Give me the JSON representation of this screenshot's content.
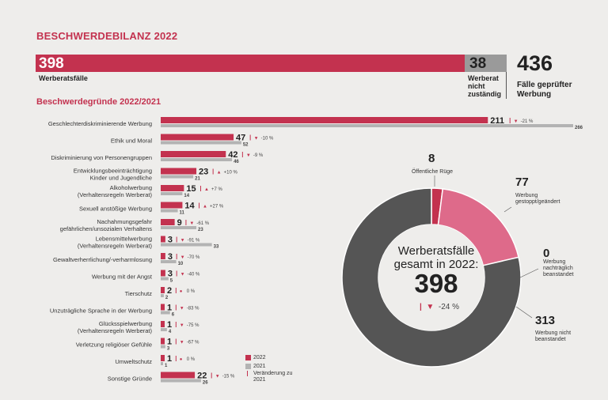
{
  "title": "BESCHWERDEBILANZ 2022",
  "subtitle": "Beschwerdegründe 2022/2021",
  "summary": {
    "werberat_value": "398",
    "werberat_label": "Werberatsfälle",
    "not_responsible_value": "38",
    "not_responsible_label": "Werberat nicht zuständig",
    "total_value": "436",
    "total_label": "Fälle geprüfter Werbung",
    "colors": {
      "red": "#c3324f",
      "gray": "#9a9a9a"
    }
  },
  "chart_data": [
    {
      "type": "bar",
      "title": "Beschwerdegründe 2022/2021",
      "xlim": [
        0,
        266
      ],
      "series_names": [
        "2022",
        "2021"
      ],
      "categories": [
        "Geschlechterdiskriminierende Werbung",
        "Ethik und Moral",
        "Diskriminierung von Personengruppen",
        "Entwicklungsbeeinträchtigung Kinder und Jugendliche",
        "Alkoholwerbung (Verhaltensregeln Werberat)",
        "Sexuell anstößige Werbung",
        "Nachahmungsgefahr gefährlichen/unsozialen Verhaltens",
        "Lebensmittelwerbung (Verhaltensregeln Werberat)",
        "Gewaltverherrlichung/-verharmlosung",
        "Werbung mit der Angst",
        "Tierschutz",
        "Unzuträgliche Sprache in der Werbung",
        "Glücksspielwerbung (Verhaltensregeln Werberat)",
        "Verletzung religiöser Gefühle",
        "Umweltschutz",
        "Sonstige Gründe"
      ],
      "label_lines": [
        [
          "Geschlechterdiskriminierende Werbung"
        ],
        [
          "Ethik und Moral"
        ],
        [
          "Diskriminierung von Personengruppen"
        ],
        [
          "Entwicklungsbeeinträchtigung",
          "Kinder und Jugendliche"
        ],
        [
          "Alkoholwerbung",
          "(Verhaltensregeln Werberat)"
        ],
        [
          "Sexuell anstößige Werbung"
        ],
        [
          "Nachahmungsgefahr",
          "gefährlichen/unsozialen Verhaltens"
        ],
        [
          "Lebensmittelwerbung",
          "(Verhaltensregeln Werberat)"
        ],
        [
          "Gewaltverherrlichung/-verharmlosung"
        ],
        [
          "Werbung mit der Angst"
        ],
        [
          "Tierschutz"
        ],
        [
          "Unzuträgliche Sprache in der Werbung"
        ],
        [
          "Glücksspielwerbung",
          "(Verhaltensregeln Werberat)"
        ],
        [
          "Verletzung religiöser Gefühle"
        ],
        [
          "Umweltschutz"
        ],
        [
          "Sonstige Gründe"
        ]
      ],
      "values_2022": [
        211,
        47,
        42,
        23,
        15,
        14,
        9,
        3,
        3,
        3,
        2,
        1,
        1,
        1,
        1,
        22
      ],
      "values_2021": [
        266,
        52,
        46,
        21,
        14,
        11,
        23,
        33,
        10,
        5,
        2,
        6,
        4,
        3,
        1,
        26
      ],
      "changes": [
        "-21 %",
        "-10 %",
        "-9 %",
        "+10 %",
        "+7 %",
        "+27 %",
        "-61 %",
        "-91 %",
        "-70 %",
        "-40 %",
        "0 %",
        "-83 %",
        "-75 %",
        "-67 %",
        "0 %",
        "-15 %"
      ],
      "directions": [
        "down",
        "down",
        "down",
        "up",
        "up",
        "up",
        "down",
        "down",
        "down",
        "down",
        "same",
        "down",
        "down",
        "down",
        "same",
        "down"
      ],
      "legend": {
        "label_2022": "2022",
        "label_2021": "2021",
        "label_change": "Veränderung zu 2021"
      }
    },
    {
      "type": "pie",
      "title": "Werberatsfälle gesamt in 2022:",
      "total": "398",
      "change": "-24 %",
      "slices": [
        {
          "label": "Öffentliche Rüge",
          "value": 8
        },
        {
          "label": "Werbung gestoppt/geändert",
          "value": 77
        },
        {
          "label": "Werbung nachträglich beanstandet",
          "value": 0
        },
        {
          "label": "Werbung nicht beanstandet",
          "value": 313
        }
      ],
      "colors": [
        "#c3324f",
        "#de6a8a",
        "#e8a7b8",
        "#555555"
      ]
    }
  ]
}
